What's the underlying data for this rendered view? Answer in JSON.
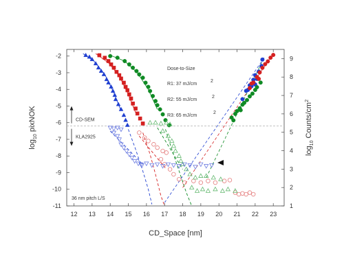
{
  "chart_data": {
    "type": "scatter",
    "xlabel": "CD_Space [nm]",
    "ylabel": "log10 pixNOK",
    "ylabel_parts": {
      "base": "log",
      "sub": "10",
      "rest": "pixNOK"
    },
    "y2label": "log10 Counts/cm²",
    "y2label_parts": {
      "base": "log",
      "sub": "10",
      "rest": "Counts/cm",
      "sup": "2"
    },
    "xlim": [
      11.6,
      23.6
    ],
    "ylim": [
      -11,
      -1.6
    ],
    "y2lim": [
      1,
      9.5
    ],
    "xticks": [
      "12",
      "13",
      "14",
      "15",
      "16",
      "17",
      "18",
      "19",
      "20",
      "21",
      "22",
      "23"
    ],
    "yticks": [
      "-2",
      "-3",
      "-4",
      "-5",
      "-6",
      "-7",
      "-8",
      "-9",
      "-10",
      "-11"
    ],
    "y2ticks": [
      "1",
      "2",
      "3",
      "4",
      "5",
      "6",
      "7",
      "8",
      "9"
    ],
    "threshold": {
      "y": -6.2,
      "label_up": "CD-SEM",
      "label_down": "KLA2925"
    },
    "legend_title": "Dose-to-Size",
    "legend_sup": "2",
    "annotation": "36 nm pitch L/S",
    "grid": false,
    "series": [
      {
        "name": "R1: 37 mJ/cm",
        "color": "#1f3fd0",
        "semsolid": [
          [
            12.65,
            -1.95
          ],
          [
            12.85,
            -2.05
          ],
          [
            13.0,
            -2.2
          ],
          [
            13.2,
            -2.45
          ],
          [
            13.35,
            -2.7
          ],
          [
            13.5,
            -2.9
          ],
          [
            13.65,
            -3.1
          ],
          [
            13.8,
            -3.4
          ],
          [
            13.9,
            -3.6
          ],
          [
            14.05,
            -3.85
          ],
          [
            14.15,
            -4.1
          ],
          [
            14.25,
            -4.35
          ],
          [
            14.3,
            -4.6
          ],
          [
            14.45,
            -4.9
          ],
          [
            14.6,
            -5.2
          ],
          [
            14.75,
            -5.55
          ],
          [
            14.85,
            -5.85
          ],
          [
            14.95,
            -6.15
          ]
        ],
        "fit": [
          [
            12.5,
            -1.85
          ],
          [
            13.1,
            -2.3
          ],
          [
            13.7,
            -3.1
          ],
          [
            14.2,
            -4.2
          ],
          [
            14.6,
            -5.3
          ],
          [
            15.0,
            -6.4
          ],
          [
            15.4,
            -7.6
          ],
          [
            15.8,
            -8.9
          ],
          [
            16.1,
            -10.0
          ],
          [
            16.3,
            -10.9
          ]
        ],
        "kla": [
          [
            14.0,
            -6.3
          ],
          [
            14.2,
            -6.35
          ],
          [
            14.4,
            -6.3
          ],
          [
            14.6,
            -6.4
          ],
          [
            14.2,
            -6.6
          ],
          [
            14.4,
            -6.8
          ],
          [
            14.5,
            -7.0
          ],
          [
            14.6,
            -7.3
          ],
          [
            14.75,
            -7.5
          ],
          [
            14.9,
            -7.7
          ],
          [
            15.05,
            -7.9
          ],
          [
            15.2,
            -8.1
          ],
          [
            15.35,
            -8.3
          ],
          [
            15.55,
            -8.45
          ],
          [
            15.75,
            -8.55
          ]
        ],
        "kla_line": [
          [
            14.0,
            -6.5
          ],
          [
            15.8,
            -8.5
          ]
        ],
        "counts": [
          [
            21.5,
            7.25
          ],
          [
            21.8,
            7.5
          ],
          [
            21.9,
            7.7
          ],
          [
            22.0,
            7.6
          ],
          [
            22.1,
            7.9
          ],
          [
            21.3,
            6.8
          ],
          [
            21.6,
            7.3
          ],
          [
            21.9,
            7.85
          ],
          [
            22.2,
            8.3
          ],
          [
            22.35,
            8.6
          ],
          [
            22.4,
            8.95
          ],
          [
            22.0,
            8.1
          ],
          [
            21.7,
            7.55
          ]
        ]
      },
      {
        "name": "R2: 55 mJ/cm",
        "color": "#d42020",
        "semsolid": [
          [
            13.4,
            -1.95
          ],
          [
            13.7,
            -2.1
          ],
          [
            13.9,
            -2.3
          ],
          [
            14.05,
            -2.5
          ],
          [
            14.2,
            -2.7
          ],
          [
            14.35,
            -2.95
          ],
          [
            14.5,
            -3.15
          ],
          [
            14.6,
            -3.35
          ],
          [
            14.75,
            -3.6
          ],
          [
            14.85,
            -3.85
          ],
          [
            14.95,
            -4.05
          ],
          [
            15.05,
            -4.3
          ],
          [
            15.15,
            -4.55
          ],
          [
            15.25,
            -4.85
          ],
          [
            15.4,
            -5.15
          ],
          [
            15.5,
            -5.45
          ],
          [
            15.65,
            -5.75
          ],
          [
            15.8,
            -6.05
          ]
        ],
        "fit": [
          [
            13.2,
            -1.85
          ],
          [
            13.9,
            -2.4
          ],
          [
            14.5,
            -3.2
          ],
          [
            15.0,
            -4.3
          ],
          [
            15.4,
            -5.4
          ],
          [
            15.8,
            -6.6
          ],
          [
            16.2,
            -7.9
          ],
          [
            16.5,
            -9.1
          ],
          [
            16.8,
            -10.4
          ],
          [
            17.0,
            -11.0
          ]
        ],
        "kla": [
          [
            15.6,
            -6.6
          ],
          [
            15.9,
            -6.9
          ],
          [
            16.1,
            -7.1
          ],
          [
            16.4,
            -7.3
          ],
          [
            16.6,
            -7.5
          ],
          [
            16.9,
            -7.7
          ],
          [
            17.1,
            -7.8
          ],
          [
            16.8,
            -8.2
          ],
          [
            17.0,
            -8.5
          ],
          [
            17.3,
            -8.8
          ],
          [
            17.5,
            -9.1
          ],
          [
            17.8,
            -9.4
          ],
          [
            18.1,
            -9.6
          ],
          [
            18.6,
            -9.5
          ],
          [
            19.0,
            -9.6
          ],
          [
            19.4,
            -9.5
          ],
          [
            19.8,
            -9.6
          ],
          [
            20.3,
            -9.5
          ],
          [
            20.6,
            -9.45
          ],
          [
            20.9,
            -10.2
          ],
          [
            21.1,
            -10.3
          ],
          [
            21.3,
            -10.25
          ],
          [
            21.5,
            -10.3
          ],
          [
            21.7,
            -10.2
          ],
          [
            21.9,
            -10.3
          ]
        ],
        "kla_line": [
          [
            15.6,
            -6.8
          ],
          [
            17.1,
            -8.8
          ]
        ],
        "counts": [
          [
            21.7,
            7.4
          ],
          [
            21.9,
            7.7
          ],
          [
            22.1,
            8.0
          ],
          [
            22.25,
            8.25
          ],
          [
            22.4,
            8.5
          ],
          [
            22.55,
            8.7
          ],
          [
            22.7,
            8.85
          ],
          [
            22.85,
            9.05
          ],
          [
            23.0,
            9.2
          ],
          [
            22.2,
            7.9
          ],
          [
            21.8,
            7.65
          ]
        ]
      },
      {
        "name": "R3: 65 mJ/cm",
        "color": "#0f8a24",
        "semsolid": [
          [
            14.0,
            -2.0
          ],
          [
            14.4,
            -2.1
          ],
          [
            14.8,
            -2.3
          ],
          [
            15.05,
            -2.5
          ],
          [
            15.25,
            -2.7
          ],
          [
            15.45,
            -2.9
          ],
          [
            15.6,
            -3.1
          ],
          [
            15.8,
            -3.3
          ],
          [
            15.95,
            -3.6
          ],
          [
            16.1,
            -3.85
          ],
          [
            16.2,
            -4.1
          ],
          [
            16.35,
            -4.4
          ],
          [
            16.5,
            -4.7
          ],
          [
            16.6,
            -4.95
          ],
          [
            16.75,
            -5.2
          ],
          [
            16.9,
            -5.5
          ],
          [
            17.05,
            -5.85
          ],
          [
            17.25,
            -6.15
          ]
        ],
        "fit": [
          [
            14.0,
            -1.95
          ],
          [
            14.8,
            -2.3
          ],
          [
            15.5,
            -3.0
          ],
          [
            16.1,
            -4.0
          ],
          [
            16.6,
            -5.2
          ],
          [
            17.05,
            -6.4
          ],
          [
            17.4,
            -7.6
          ],
          [
            17.8,
            -8.9
          ],
          [
            18.2,
            -10.2
          ],
          [
            18.5,
            -11.0
          ]
        ],
        "kla": [
          [
            16.2,
            -6.0
          ],
          [
            16.5,
            -6.0
          ],
          [
            16.8,
            -6.05
          ],
          [
            17.1,
            -6.0
          ],
          [
            17.3,
            -6.1
          ],
          [
            16.9,
            -6.5
          ],
          [
            17.2,
            -6.8
          ],
          [
            17.4,
            -7.1
          ],
          [
            17.5,
            -7.4
          ],
          [
            17.6,
            -7.7
          ],
          [
            17.8,
            -8.0
          ],
          [
            17.9,
            -8.3
          ],
          [
            18.0,
            -8.5
          ],
          [
            18.2,
            -8.8
          ],
          [
            18.4,
            -9.1
          ],
          [
            18.7,
            -9.3
          ],
          [
            19.0,
            -9.2
          ],
          [
            19.3,
            -9.2
          ],
          [
            19.7,
            -9.3
          ],
          [
            20.1,
            -9.4
          ],
          [
            18.5,
            -9.9
          ],
          [
            18.8,
            -10.1
          ],
          [
            19.1,
            -10.0
          ],
          [
            19.4,
            -10.1
          ],
          [
            19.8,
            -10.0
          ],
          [
            20.2,
            -10.1
          ],
          [
            20.5,
            -10.0
          ],
          [
            20.9,
            -10.1
          ]
        ],
        "kla_line": [
          [
            16.6,
            -6.3
          ],
          [
            18.0,
            -8.8
          ]
        ],
        "counts": [
          [
            20.7,
            5.8
          ],
          [
            20.9,
            6.0
          ],
          [
            21.0,
            6.15
          ],
          [
            21.15,
            6.3
          ],
          [
            21.3,
            6.5
          ],
          [
            21.4,
            6.6
          ],
          [
            21.55,
            6.75
          ],
          [
            21.7,
            6.95
          ],
          [
            21.85,
            7.1
          ],
          [
            22.0,
            7.3
          ],
          [
            22.1,
            7.45
          ],
          [
            22.3,
            7.7
          ],
          [
            21.2,
            6.2
          ],
          [
            20.8,
            5.65
          ]
        ]
      }
    ],
    "extra_blue_kla": [
      [
        15.7,
        -8.5
      ],
      [
        16.0,
        -8.45
      ],
      [
        16.3,
        -8.55
      ],
      [
        16.6,
        -8.5
      ],
      [
        16.9,
        -8.6
      ],
      [
        17.2,
        -8.5
      ],
      [
        17.5,
        -8.55
      ],
      [
        17.8,
        -8.6
      ],
      [
        18.1,
        -8.5
      ],
      [
        18.4,
        -8.55
      ],
      [
        18.7,
        -8.65
      ],
      [
        19.0,
        -8.5
      ],
      [
        19.3,
        -8.6
      ],
      [
        19.6,
        -8.55
      ]
    ],
    "counts_lines": [
      {
        "color": "#1f3fd0",
        "from": [
          17.0,
          -10.8
        ],
        "to": [
          22.5,
          -2.1
        ]
      },
      {
        "color": "#d42020",
        "from": [
          18.0,
          -9.9
        ],
        "to": [
          22.9,
          -2.0
        ]
      },
      {
        "color": "#0f8a24",
        "from": [
          19.3,
          -9.3
        ],
        "to": [
          22.4,
          -2.3
        ]
      }
    ]
  }
}
